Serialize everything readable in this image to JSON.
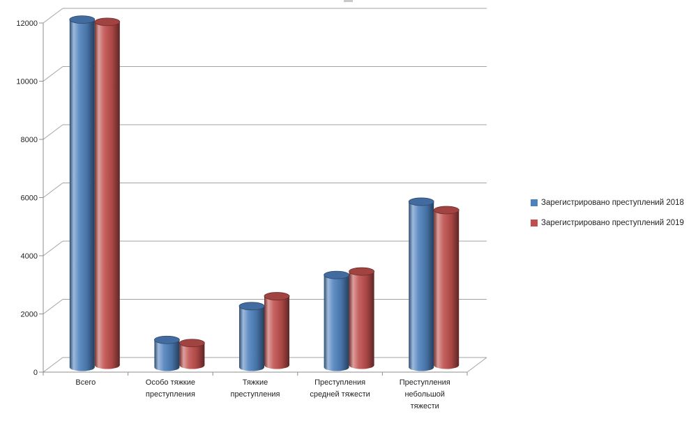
{
  "window": {
    "background": "#ffffff"
  },
  "chart_data": {
    "type": "bar",
    "style": "3d-cylinder",
    "title": "",
    "xlabel": "",
    "ylabel": "",
    "categories": [
      "Всего",
      "Особо тяжкие преступления",
      "Тяжкие преступления",
      "Преступления средней тяжести",
      "Преступления небольшой тяжести"
    ],
    "category_label_lines": [
      [
        "Всего"
      ],
      [
        "Особо тяжкие",
        "преступления"
      ],
      [
        "Тяжкие",
        "преступления"
      ],
      [
        "Преступления",
        "средней тяжести"
      ],
      [
        "Преступления",
        "небольшой",
        "тяжести"
      ]
    ],
    "series": [
      {
        "name": "Зарегистрировано преступлений 2018",
        "color": "#4F81BD",
        "values": [
          11950,
          940,
          2100,
          3170,
          5690
        ]
      },
      {
        "name": "Зарегистрировано преступлений 2019",
        "color": "#C0504D",
        "values": [
          11800,
          760,
          2370,
          3220,
          5330
        ]
      }
    ],
    "ylim": [
      0,
      12000
    ],
    "ytick_step": 2000,
    "ytick_labels": [
      "0",
      "2000",
      "4000",
      "6000",
      "8000",
      "10000",
      "12000"
    ],
    "grid": true,
    "legend_position": "right-middle"
  },
  "colors": {
    "gridline": "#a3a3a3",
    "axis": "#8c8c8c",
    "text": "#1f1f1f",
    "title_fragment": "#c9c9c9"
  }
}
